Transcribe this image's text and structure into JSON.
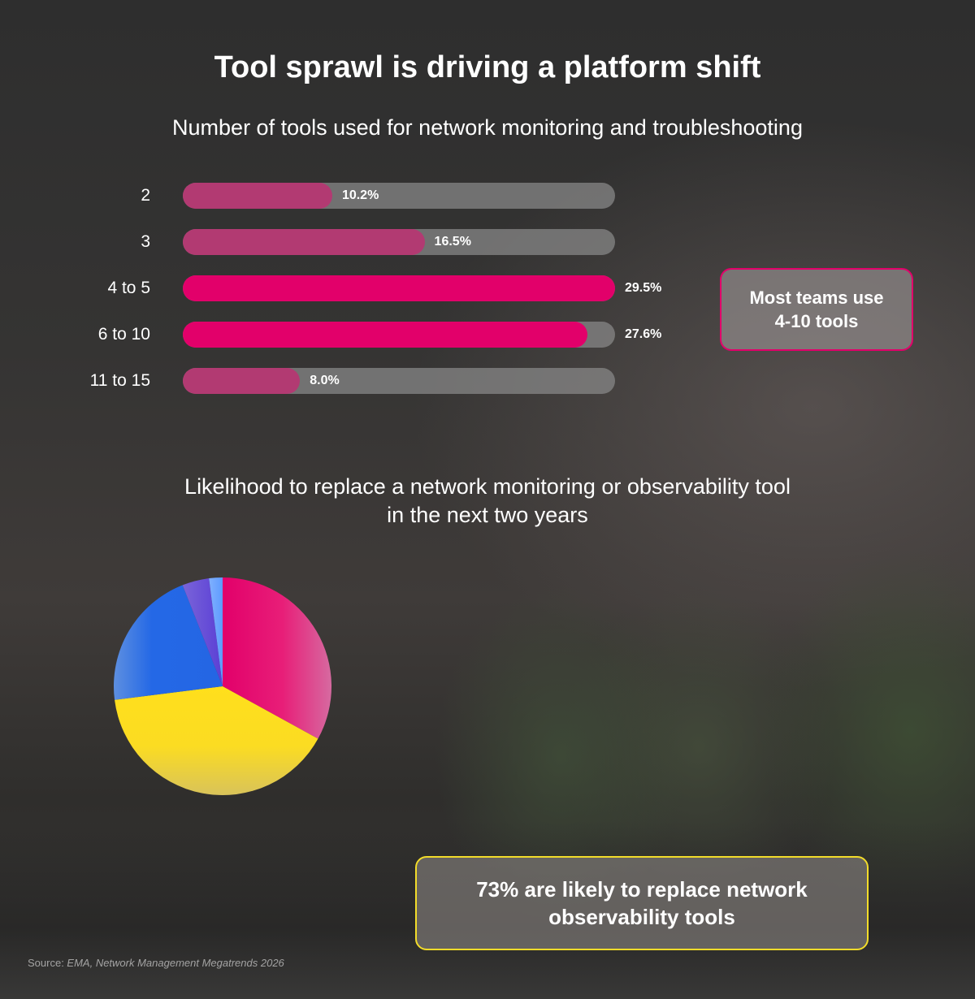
{
  "title": "Tool sprawl is driving a platform shift",
  "bar_chart_title": "Number of tools used for network monitoring and troubleshooting",
  "pie_chart_title_line1": "Likelihood to replace a network monitoring or observability tool",
  "pie_chart_title_line2": "in the next two years",
  "callout_tools_line1": "Most teams use",
  "callout_tools_line2": "4-10 tools",
  "callout_replace_line1": "73% are likely to replace network",
  "callout_replace_line2": "observability tools",
  "source_prefix": "Source: ",
  "source_text": "EMA, Network Management Megatrends 2026",
  "colors": {
    "bar_highlight": "#e2006a",
    "bar_normal": "#b23a72",
    "bar_track": "#878787",
    "callout_pink": "#e2006a",
    "callout_yellow": "#f2dc2a",
    "pie_pink": "#e2006a",
    "pie_yellow": "#ffdf1c",
    "pie_blue": "#2468e6",
    "pie_purple": "#5a3fd6",
    "pie_lightblue": "#5e9bff"
  },
  "chart_data": [
    {
      "type": "bar",
      "orientation": "horizontal",
      "title": "Number of tools used for network monitoring and troubleshooting",
      "categories": [
        "2",
        "3",
        "4 to 5",
        "6 to 10",
        "11 to 15"
      ],
      "values": [
        10.2,
        16.5,
        29.5,
        27.6,
        8.0
      ],
      "value_labels": [
        "10.2%",
        "16.5%",
        "29.5%",
        "27.6%",
        "8.0%"
      ],
      "highlighted": [
        false,
        false,
        true,
        true,
        false
      ],
      "xlim": [
        0,
        29.5
      ],
      "unit": "%",
      "grid": false,
      "legend": "none"
    },
    {
      "type": "pie",
      "title": "Likelihood to replace a network monitoring or observability tool in the next two years",
      "values": [
        33,
        40,
        21,
        4,
        2
      ],
      "colors": [
        "#e2006a",
        "#ffdf1c",
        "#2468e6",
        "#5a3fd6",
        "#5e9bff"
      ],
      "start": "top",
      "direction": "clockwise",
      "labels_shown": false,
      "legend": "none"
    }
  ]
}
